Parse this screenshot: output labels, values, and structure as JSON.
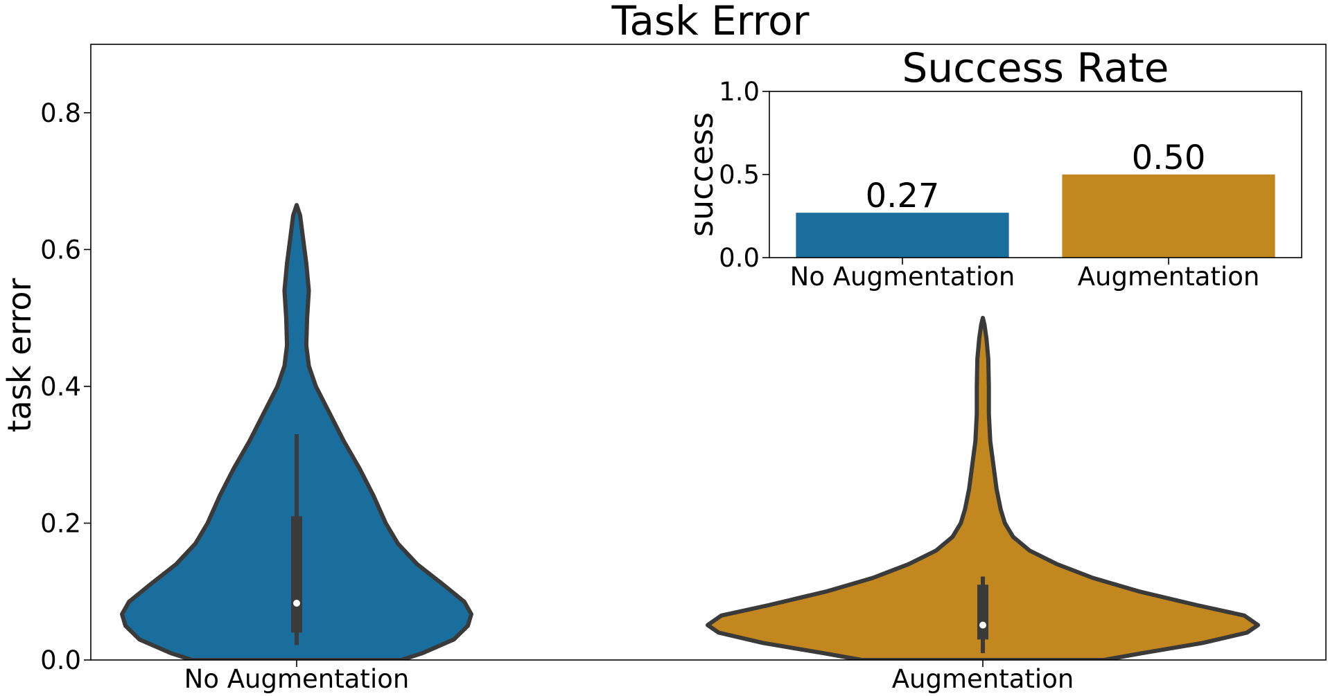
{
  "colors": {
    "no_augmentation": "#1a6e9e",
    "augmentation": "#c3871f",
    "outline": "#3a3a3a",
    "median": "#ffffff"
  },
  "chart_data": [
    {
      "type": "violin",
      "title": "Task Error",
      "xlabel": "",
      "ylabel": "task error",
      "ylim": [
        0,
        0.9
      ],
      "yticks": [
        0.0,
        0.2,
        0.4,
        0.6,
        0.8
      ],
      "ytick_labels": [
        "0.0",
        "0.2",
        "0.4",
        "0.6",
        "0.8"
      ],
      "categories": [
        "No Augmentation",
        "Augmentation"
      ],
      "grid": false,
      "series": [
        {
          "category": "No Augmentation",
          "color": "#1a6e9e",
          "median": 0.083,
          "q1": 0.04,
          "q3": 0.21,
          "whisker_low": 0.022,
          "whisker_high": 0.33,
          "max": 0.665,
          "density": [
            [
              0.0,
              0.6
            ],
            [
              0.01,
              0.72
            ],
            [
              0.03,
              0.9
            ],
            [
              0.05,
              0.98
            ],
            [
              0.067,
              1.0
            ],
            [
              0.085,
              0.96
            ],
            [
              0.11,
              0.84
            ],
            [
              0.14,
              0.69
            ],
            [
              0.17,
              0.58
            ],
            [
              0.2,
              0.51
            ],
            [
              0.24,
              0.44
            ],
            [
              0.28,
              0.36
            ],
            [
              0.32,
              0.27
            ],
            [
              0.36,
              0.19
            ],
            [
              0.4,
              0.11
            ],
            [
              0.43,
              0.07
            ],
            [
              0.46,
              0.055
            ],
            [
              0.5,
              0.06
            ],
            [
              0.54,
              0.07
            ],
            [
              0.58,
              0.055
            ],
            [
              0.62,
              0.035
            ],
            [
              0.65,
              0.02
            ],
            [
              0.665,
              0.0
            ]
          ]
        },
        {
          "category": "Augmentation",
          "color": "#c3871f",
          "median": 0.051,
          "q1": 0.03,
          "q3": 0.11,
          "whisker_low": 0.01,
          "whisker_high": 0.122,
          "max": 0.5,
          "density": [
            [
              0.0,
              0.44
            ],
            [
              0.01,
              0.58
            ],
            [
              0.025,
              0.8
            ],
            [
              0.04,
              0.96
            ],
            [
              0.051,
              1.0
            ],
            [
              0.065,
              0.95
            ],
            [
              0.08,
              0.78
            ],
            [
              0.1,
              0.57
            ],
            [
              0.12,
              0.4
            ],
            [
              0.14,
              0.27
            ],
            [
              0.16,
              0.17
            ],
            [
              0.18,
              0.11
            ],
            [
              0.2,
              0.08
            ],
            [
              0.22,
              0.065
            ],
            [
              0.25,
              0.05
            ],
            [
              0.28,
              0.04
            ],
            [
              0.32,
              0.027
            ],
            [
              0.36,
              0.022
            ],
            [
              0.4,
              0.022
            ],
            [
              0.44,
              0.02
            ],
            [
              0.47,
              0.013
            ],
            [
              0.49,
              0.006
            ],
            [
              0.5,
              0.0
            ]
          ]
        }
      ]
    },
    {
      "type": "bar",
      "title": "Success Rate",
      "xlabel": "",
      "ylabel": "success",
      "ylim": [
        0,
        1.0
      ],
      "yticks": [
        0.0,
        0.5,
        1.0
      ],
      "ytick_labels": [
        "0.0",
        "0.5",
        "1.0"
      ],
      "categories": [
        "No Augmentation",
        "Augmentation"
      ],
      "values": [
        0.27,
        0.5
      ],
      "value_labels": [
        "0.27",
        "0.50"
      ],
      "grid": false
    }
  ]
}
